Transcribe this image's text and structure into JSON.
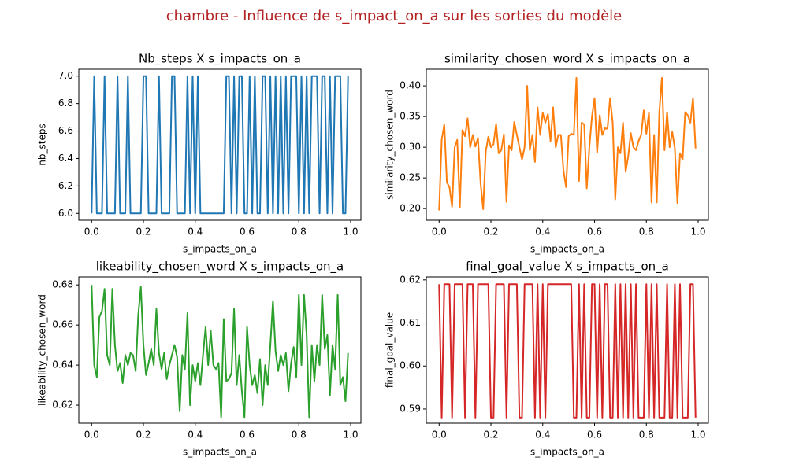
{
  "title": "chambre - Influence de s_impact_on_a sur les sorties du modèle",
  "chart_data": [
    {
      "type": "line",
      "title": "Nb_steps X s_impacts_on_a",
      "x_label": "s_impacts_on_a",
      "y_label": "nb_steps",
      "color": "#1f77b4",
      "x": [
        0,
        0.01,
        0.02,
        0.03,
        0.04,
        0.05,
        0.06,
        0.07,
        0.08,
        0.09,
        0.1,
        0.11,
        0.12,
        0.13,
        0.14,
        0.15,
        0.16,
        0.17,
        0.18,
        0.19,
        0.2,
        0.21,
        0.22,
        0.23,
        0.24,
        0.25,
        0.26,
        0.27,
        0.28,
        0.29,
        0.3,
        0.31,
        0.32,
        0.33,
        0.34,
        0.35,
        0.36,
        0.37,
        0.38,
        0.39,
        0.4,
        0.41,
        0.42,
        0.43,
        0.44,
        0.45,
        0.46,
        0.47,
        0.48,
        0.49,
        0.5,
        0.51,
        0.52,
        0.53,
        0.54,
        0.55,
        0.56,
        0.57,
        0.58,
        0.59,
        0.6,
        0.61,
        0.62,
        0.63,
        0.64,
        0.65,
        0.66,
        0.67,
        0.68,
        0.69,
        0.7,
        0.71,
        0.72,
        0.73,
        0.74,
        0.75,
        0.76,
        0.77,
        0.78,
        0.79,
        0.8,
        0.81,
        0.82,
        0.83,
        0.84,
        0.85,
        0.86,
        0.87,
        0.88,
        0.89,
        0.9,
        0.91,
        0.92,
        0.93,
        0.94,
        0.95,
        0.96,
        0.97,
        0.98,
        0.99
      ],
      "values": [
        6,
        7,
        6,
        6,
        6,
        7,
        6,
        6,
        6,
        6,
        7,
        6,
        6,
        6,
        7,
        6,
        6,
        6,
        6,
        6,
        7,
        7,
        6,
        6,
        6,
        6,
        7,
        6,
        6,
        6,
        6,
        7,
        7,
        6,
        6,
        6,
        6,
        7,
        6,
        7,
        6,
        7,
        6,
        6,
        6,
        6,
        6,
        6,
        6,
        6,
        6,
        6,
        7,
        7,
        6,
        7,
        6,
        7,
        7,
        6,
        6,
        7,
        6,
        7,
        6,
        6,
        7,
        7,
        6,
        7,
        6,
        7,
        6,
        7,
        6,
        7,
        6,
        7,
        7,
        7,
        6,
        7,
        6,
        7,
        6,
        7,
        7,
        7,
        6,
        7,
        7,
        6,
        7,
        6,
        7,
        7,
        7,
        6,
        6,
        7
      ],
      "xlim": [
        -0.0495,
        1.0395
      ],
      "xticks": [
        {
          "value": 0,
          "label": "0.0"
        },
        0.2,
        0.4,
        0.6,
        0.8,
        {
          "value": 1,
          "label": "1.0"
        }
      ],
      "ylim": [
        5.95,
        7.05
      ],
      "yticks": [
        {
          "value": 6,
          "label": "6.0"
        },
        6.2,
        6.4,
        6.6,
        6.8,
        {
          "value": 7,
          "label": "7.0"
        }
      ]
    },
    {
      "type": "line",
      "title": "similarity_chosen_word X s_impacts_on_a",
      "x_label": "s_impacts_on_a",
      "y_label": "similarity_chosen_word",
      "color": "#ff7f0e",
      "x": [
        0,
        0.01,
        0.02,
        0.03,
        0.04,
        0.05,
        0.06,
        0.07,
        0.08,
        0.09,
        0.1,
        0.11,
        0.12,
        0.13,
        0.14,
        0.15,
        0.16,
        0.17,
        0.18,
        0.19,
        0.2,
        0.21,
        0.22,
        0.23,
        0.24,
        0.25,
        0.26,
        0.27,
        0.28,
        0.29,
        0.3,
        0.31,
        0.32,
        0.33,
        0.34,
        0.35,
        0.36,
        0.37,
        0.38,
        0.39,
        0.4,
        0.41,
        0.42,
        0.43,
        0.44,
        0.45,
        0.46,
        0.47,
        0.48,
        0.49,
        0.5,
        0.51,
        0.52,
        0.53,
        0.54,
        0.55,
        0.56,
        0.57,
        0.58,
        0.59,
        0.6,
        0.61,
        0.62,
        0.63,
        0.64,
        0.65,
        0.66,
        0.67,
        0.68,
        0.69,
        0.7,
        0.71,
        0.72,
        0.73,
        0.74,
        0.75,
        0.76,
        0.77,
        0.78,
        0.79,
        0.8,
        0.81,
        0.82,
        0.83,
        0.84,
        0.85,
        0.86,
        0.87,
        0.88,
        0.89,
        0.9,
        0.91,
        0.92,
        0.93,
        0.94,
        0.95,
        0.96,
        0.97,
        0.98,
        0.99
      ],
      "values": [
        0.197,
        0.312,
        0.337,
        0.243,
        0.235,
        0.203,
        0.3,
        0.312,
        0.202,
        0.328,
        0.318,
        0.347,
        0.3,
        0.32,
        0.301,
        0.315,
        0.242,
        0.199,
        0.293,
        0.317,
        0.3,
        0.305,
        0.338,
        0.29,
        0.295,
        0.321,
        0.211,
        0.303,
        0.295,
        0.341,
        0.32,
        0.3,
        0.28,
        0.3,
        0.4,
        0.295,
        0.32,
        0.276,
        0.365,
        0.32,
        0.356,
        0.34,
        0.354,
        0.31,
        0.365,
        0.3,
        0.32,
        0.32,
        0.262,
        0.235,
        0.318,
        0.322,
        0.32,
        0.413,
        0.245,
        0.34,
        0.337,
        0.233,
        0.3,
        0.35,
        0.38,
        0.291,
        0.352,
        0.32,
        0.331,
        0.33,
        0.38,
        0.34,
        0.215,
        0.3,
        0.29,
        0.34,
        0.26,
        0.285,
        0.323,
        0.3,
        0.295,
        0.31,
        0.32,
        0.36,
        0.322,
        0.356,
        0.21,
        0.32,
        0.21,
        0.357,
        0.413,
        0.295,
        0.357,
        0.3,
        0.325,
        0.298,
        0.209,
        0.29,
        0.28,
        0.357,
        0.352,
        0.34,
        0.38,
        0.298
      ],
      "xlim": [
        -0.0495,
        1.0395
      ],
      "xticks": [
        {
          "value": 0,
          "label": "0.0"
        },
        0.2,
        0.4,
        0.6,
        0.8,
        {
          "value": 1,
          "label": "1.0"
        }
      ],
      "ylim": [
        0.181,
        0.427
      ],
      "yticks": [
        {
          "value": 0.2,
          "label": "0.20"
        },
        0.25,
        {
          "value": 0.3,
          "label": "0.30"
        },
        0.35,
        {
          "value": 0.4,
          "label": "0.40"
        }
      ]
    },
    {
      "type": "line",
      "title": "likeability_chosen_word X s_impacts_on_a",
      "x_label": "s_impacts_on_a",
      "y_label": "likeability_chosen_word",
      "color": "#2ca02c",
      "x": [
        0,
        0.01,
        0.02,
        0.03,
        0.04,
        0.05,
        0.06,
        0.07,
        0.08,
        0.09,
        0.1,
        0.11,
        0.12,
        0.13,
        0.14,
        0.15,
        0.16,
        0.17,
        0.18,
        0.19,
        0.2,
        0.21,
        0.22,
        0.23,
        0.24,
        0.25,
        0.26,
        0.27,
        0.28,
        0.29,
        0.3,
        0.31,
        0.32,
        0.33,
        0.34,
        0.35,
        0.36,
        0.37,
        0.38,
        0.39,
        0.4,
        0.41,
        0.42,
        0.43,
        0.44,
        0.45,
        0.46,
        0.47,
        0.48,
        0.49,
        0.5,
        0.51,
        0.52,
        0.53,
        0.54,
        0.55,
        0.56,
        0.57,
        0.58,
        0.59,
        0.6,
        0.61,
        0.62,
        0.63,
        0.64,
        0.65,
        0.66,
        0.67,
        0.68,
        0.69,
        0.7,
        0.71,
        0.72,
        0.73,
        0.74,
        0.75,
        0.76,
        0.77,
        0.78,
        0.79,
        0.8,
        0.81,
        0.82,
        0.83,
        0.84,
        0.85,
        0.86,
        0.87,
        0.88,
        0.89,
        0.9,
        0.91,
        0.92,
        0.93,
        0.94,
        0.95,
        0.96,
        0.97,
        0.98,
        0.99
      ],
      "values": [
        0.68,
        0.64,
        0.634,
        0.664,
        0.667,
        0.678,
        0.645,
        0.64,
        0.678,
        0.65,
        0.637,
        0.641,
        0.631,
        0.645,
        0.64,
        0.646,
        0.645,
        0.637,
        0.665,
        0.679,
        0.65,
        0.635,
        0.641,
        0.648,
        0.64,
        0.668,
        0.646,
        0.638,
        0.646,
        0.633,
        0.64,
        0.645,
        0.65,
        0.644,
        0.617,
        0.645,
        0.638,
        0.666,
        0.62,
        0.64,
        0.632,
        0.641,
        0.63,
        0.645,
        0.659,
        0.64,
        0.657,
        0.64,
        0.638,
        0.641,
        0.614,
        0.663,
        0.632,
        0.633,
        0.636,
        0.668,
        0.63,
        0.645,
        0.627,
        0.614,
        0.659,
        0.64,
        0.63,
        0.635,
        0.626,
        0.643,
        0.62,
        0.64,
        0.63,
        0.65,
        0.672,
        0.647,
        0.637,
        0.645,
        0.64,
        0.646,
        0.627,
        0.641,
        0.649,
        0.634,
        0.675,
        0.64,
        0.675,
        0.655,
        0.614,
        0.65,
        0.632,
        0.65,
        0.64,
        0.675,
        0.648,
        0.655,
        0.625,
        0.65,
        0.638,
        0.675,
        0.63,
        0.634,
        0.622,
        0.646
      ],
      "xlim": [
        -0.0495,
        1.0395
      ],
      "xticks": [
        {
          "value": 0,
          "label": "0.0"
        },
        0.2,
        0.4,
        0.6,
        0.8,
        {
          "value": 1,
          "label": "1.0"
        }
      ],
      "ylim": [
        0.611,
        0.684
      ],
      "yticks": [
        0.62,
        0.64,
        0.66,
        0.68
      ]
    },
    {
      "type": "line",
      "title": "final_goal_value X s_impacts_on_a",
      "x_label": "s_impacts_on_a",
      "y_label": "final_goal_value",
      "color": "#d62728",
      "x": [
        0,
        0.01,
        0.02,
        0.03,
        0.04,
        0.05,
        0.06,
        0.07,
        0.08,
        0.09,
        0.1,
        0.11,
        0.12,
        0.13,
        0.14,
        0.15,
        0.16,
        0.17,
        0.18,
        0.19,
        0.2,
        0.21,
        0.22,
        0.23,
        0.24,
        0.25,
        0.26,
        0.27,
        0.28,
        0.29,
        0.3,
        0.31,
        0.32,
        0.33,
        0.34,
        0.35,
        0.36,
        0.37,
        0.38,
        0.39,
        0.4,
        0.41,
        0.42,
        0.43,
        0.44,
        0.45,
        0.46,
        0.47,
        0.48,
        0.49,
        0.5,
        0.51,
        0.52,
        0.53,
        0.54,
        0.55,
        0.56,
        0.57,
        0.58,
        0.59,
        0.6,
        0.61,
        0.62,
        0.63,
        0.64,
        0.65,
        0.66,
        0.67,
        0.68,
        0.69,
        0.7,
        0.71,
        0.72,
        0.73,
        0.74,
        0.75,
        0.76,
        0.77,
        0.78,
        0.79,
        0.8,
        0.81,
        0.82,
        0.83,
        0.84,
        0.85,
        0.86,
        0.87,
        0.88,
        0.89,
        0.9,
        0.91,
        0.92,
        0.93,
        0.94,
        0.95,
        0.96,
        0.97,
        0.98,
        0.99
      ],
      "values": [
        0.619,
        0.588,
        0.619,
        0.619,
        0.619,
        0.588,
        0.619,
        0.619,
        0.619,
        0.619,
        0.588,
        0.619,
        0.619,
        0.619,
        0.588,
        0.619,
        0.619,
        0.619,
        0.619,
        0.619,
        0.588,
        0.588,
        0.619,
        0.619,
        0.619,
        0.619,
        0.588,
        0.619,
        0.619,
        0.619,
        0.619,
        0.588,
        0.588,
        0.619,
        0.619,
        0.619,
        0.619,
        0.588,
        0.619,
        0.588,
        0.619,
        0.588,
        0.619,
        0.619,
        0.619,
        0.619,
        0.619,
        0.619,
        0.619,
        0.619,
        0.619,
        0.619,
        0.588,
        0.588,
        0.619,
        0.588,
        0.619,
        0.588,
        0.588,
        0.619,
        0.619,
        0.588,
        0.619,
        0.588,
        0.619,
        0.619,
        0.588,
        0.588,
        0.619,
        0.588,
        0.619,
        0.588,
        0.619,
        0.588,
        0.619,
        0.588,
        0.619,
        0.588,
        0.588,
        0.588,
        0.619,
        0.588,
        0.619,
        0.588,
        0.619,
        0.588,
        0.588,
        0.588,
        0.619,
        0.588,
        0.588,
        0.619,
        0.588,
        0.619,
        0.588,
        0.588,
        0.588,
        0.619,
        0.619,
        0.588
      ],
      "xlim": [
        -0.0495,
        1.0395
      ],
      "xticks": [
        {
          "value": 0,
          "label": "0.0"
        },
        0.2,
        0.4,
        0.6,
        0.8,
        {
          "value": 1,
          "label": "1.0"
        }
      ],
      "ylim": [
        0.5867,
        0.6207
      ],
      "yticks": [
        0.59,
        {
          "value": 0.6,
          "label": "0.60"
        },
        0.61,
        0.62
      ]
    }
  ]
}
